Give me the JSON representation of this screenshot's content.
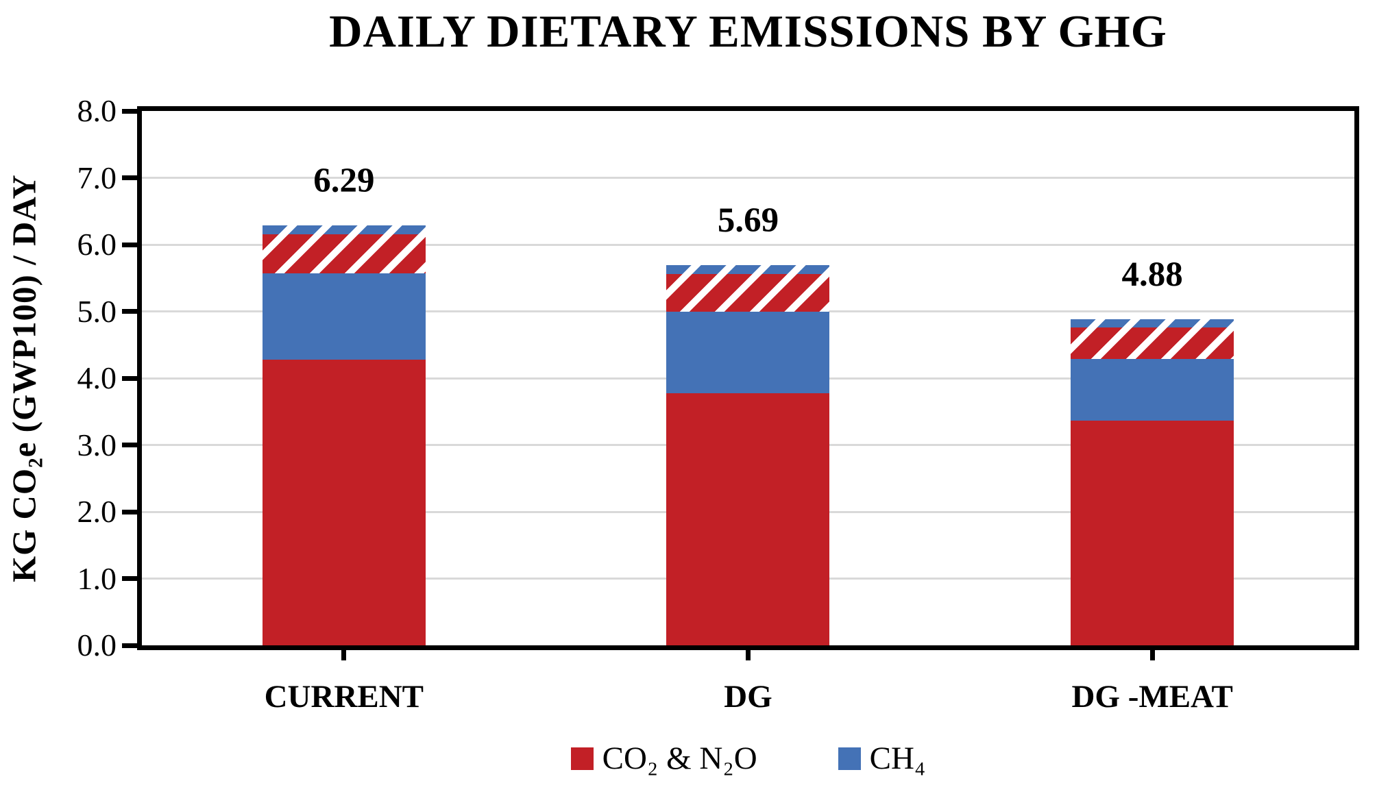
{
  "title": "DAILY DIETARY EMISSIONS BY GHG",
  "y_axis": {
    "title": "KG CO₂e (GWP100) / DAY",
    "tick_labels": [
      "8.0",
      "7.0",
      "6.0",
      "5.0",
      "4.0",
      "3.0",
      "2.0",
      "1.0",
      "0.0"
    ]
  },
  "x_axis": {
    "categories": [
      "CURRENT",
      "DG",
      "DG -MEAT"
    ]
  },
  "legend": {
    "items": [
      {
        "label": "CO₂ & N₂O",
        "color": "#c22026"
      },
      {
        "label": "CH₄",
        "color": "#4472b6"
      }
    ]
  },
  "colors": {
    "red": "#c22026",
    "blue": "#4472b6",
    "hatch_stripe": "#ffffff",
    "gridline": "#d9d9d9",
    "axis": "#000000"
  },
  "chart_data": {
    "type": "bar",
    "stacked": true,
    "title": "DAILY DIETARY EMISSIONS BY GHG",
    "ylabel": "KG CO₂e (GWP100) / DAY",
    "ylim": [
      0,
      8
    ],
    "ytick_step": 1.0,
    "grid": true,
    "legend_position": "bottom",
    "categories": [
      "CURRENT",
      "DG",
      "DG -MEAT"
    ],
    "series": [
      {
        "name": "CO₂ & N₂O",
        "style": "solid-red",
        "values": [
          4.28,
          3.77,
          3.36
        ]
      },
      {
        "name": "CH₄",
        "style": "solid-blue",
        "values": [
          1.29,
          1.23,
          0.93
        ]
      },
      {
        "name": "CO₂ & N₂O (hatched)",
        "style": "hatched-red",
        "values": [
          0.58,
          0.56,
          0.47
        ]
      },
      {
        "name": "CH₄ (hatched)",
        "style": "hatched-blue",
        "values": [
          0.14,
          0.13,
          0.12
        ]
      }
    ],
    "totals": [
      6.29,
      5.69,
      4.88
    ],
    "total_labels": [
      "6.29",
      "5.69",
      "4.88"
    ]
  }
}
